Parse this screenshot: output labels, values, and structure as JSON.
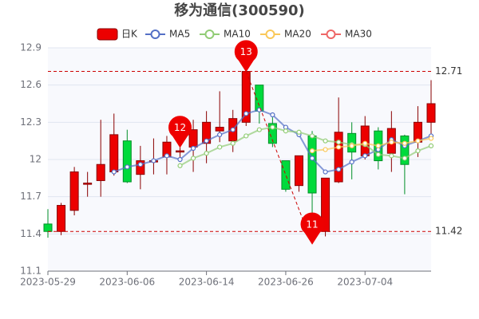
{
  "chart_data": {
    "type": "candlestick",
    "title": "移为通信(300590)",
    "categories": [
      "2023-05-29",
      null,
      null,
      null,
      null,
      null,
      "2023-06-06",
      null,
      null,
      null,
      null,
      null,
      "2023-06-14",
      null,
      null,
      null,
      null,
      null,
      "2023-06-26",
      null,
      null,
      null,
      null,
      null,
      "2023-07-04",
      null,
      null,
      null,
      null,
      null
    ],
    "ylim": [
      11.1,
      12.9
    ],
    "yticks": [
      11.1,
      11.4,
      11.7,
      12,
      12.3,
      12.6,
      12.9
    ],
    "grid": true,
    "up_color": "#ec0000",
    "up_border": "#8a0000",
    "down_color": "#00da3c",
    "down_border": "#008f28",
    "series": [
      {
        "name": "日K",
        "type": "candlestick",
        "color": "#ec0000",
        "open": [
          11.48,
          11.42,
          11.59,
          11.8,
          11.83,
          11.9,
          12.15,
          11.88,
          11.98,
          12.02,
          12.06,
          12.1,
          12.13,
          12.23,
          12.15,
          12.3,
          12.6,
          12.29,
          11.99,
          11.79,
          12.19,
          11.42,
          11.82,
          12.21,
          12.03,
          12.23,
          12.05,
          12.19,
          12.14,
          12.3
        ],
        "close": [
          11.42,
          11.63,
          11.9,
          11.81,
          11.96,
          12.2,
          11.82,
          11.99,
          11.99,
          12.14,
          12.07,
          12.24,
          12.3,
          12.26,
          12.33,
          12.71,
          12.39,
          12.13,
          11.76,
          12.03,
          11.73,
          11.85,
          12.22,
          12.06,
          12.27,
          11.99,
          12.25,
          11.96,
          12.3,
          12.45
        ],
        "low": [
          11.37,
          11.39,
          11.55,
          11.7,
          11.7,
          11.87,
          11.81,
          11.76,
          11.88,
          11.88,
          11.98,
          11.9,
          11.97,
          12.14,
          12.06,
          12.27,
          12.29,
          12.1,
          11.74,
          11.74,
          11.32,
          11.38,
          11.81,
          11.84,
          12.0,
          11.92,
          11.9,
          11.72,
          12.02,
          12.18
        ],
        "high": [
          11.6,
          11.65,
          11.94,
          11.9,
          12.32,
          12.37,
          12.24,
          12.11,
          12.17,
          12.19,
          12.1,
          12.32,
          12.39,
          12.55,
          12.4,
          12.71,
          12.6,
          12.34,
          11.99,
          12.03,
          12.23,
          11.85,
          12.5,
          12.3,
          12.35,
          12.26,
          12.39,
          12.2,
          12.43,
          12.64
        ]
      },
      {
        "name": "MA5",
        "type": "line",
        "color": "#5470c6",
        "values": [
          null,
          null,
          null,
          null,
          null,
          11.9,
          11.94,
          11.96,
          11.99,
          12.03,
          12.0,
          12.09,
          12.15,
          12.2,
          12.24,
          12.37,
          12.4,
          12.36,
          12.26,
          12.2,
          12.01,
          11.9,
          11.92,
          11.98,
          12.03,
          12.08,
          12.16,
          12.11,
          12.15,
          12.19
        ]
      },
      {
        "name": "MA10",
        "type": "line",
        "color": "#91cc75",
        "values": [
          null,
          null,
          null,
          null,
          null,
          null,
          null,
          null,
          null,
          null,
          11.95,
          12.01,
          12.05,
          12.1,
          12.13,
          12.19,
          12.24,
          12.26,
          12.23,
          12.22,
          12.19,
          12.15,
          12.14,
          12.12,
          12.12,
          12.04,
          12.03,
          12.01,
          12.07,
          12.11
        ]
      },
      {
        "name": "MA20",
        "type": "line",
        "color": "#fac858",
        "values": [
          null,
          null,
          null,
          null,
          null,
          null,
          null,
          null,
          null,
          null,
          null,
          null,
          null,
          null,
          null,
          null,
          null,
          null,
          null,
          null,
          12.07,
          12.08,
          12.1,
          12.11,
          12.13,
          12.11,
          12.14,
          12.13,
          12.15,
          12.17
        ]
      },
      {
        "name": "MA30",
        "type": "line",
        "color": "#ee6666",
        "values": [
          null,
          null,
          null,
          null,
          null,
          null,
          null,
          null,
          null,
          null,
          null,
          null,
          null,
          null,
          null,
          null,
          null,
          null,
          null,
          null,
          null,
          null,
          null,
          null,
          null,
          null,
          null,
          null,
          null,
          null
        ]
      }
    ],
    "mark_points": [
      {
        "category_index": 10,
        "value": 12.1,
        "label": "12"
      },
      {
        "category_index": 15,
        "value": 12.71,
        "label": "13"
      },
      {
        "category_index": 20,
        "value": 11.32,
        "label": "11"
      }
    ],
    "mark_lines": [
      12.71,
      11.42
    ]
  }
}
